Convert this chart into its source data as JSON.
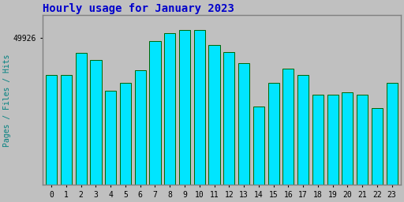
{
  "title": "Hourly usage for January 2023",
  "title_color": "#0000cc",
  "title_fontsize": 10,
  "ylabel": "Pages / Files / Hits",
  "ylabel_color": "#008080",
  "ylabel_fontsize": 7,
  "background_color": "#c0c0c0",
  "plot_bg_color": "#c0c0c0",
  "bar_face_color": "#00e5ff",
  "bar_edge_color": "#006400",
  "bar_edge_width": 0.7,
  "hours": [
    0,
    1,
    2,
    3,
    4,
    5,
    6,
    7,
    8,
    9,
    10,
    11,
    12,
    13,
    14,
    15,
    16,
    17,
    18,
    19,
    20,
    21,
    22,
    23
  ],
  "values": [
    49640,
    49640,
    49810,
    49760,
    49520,
    49580,
    49680,
    49900,
    49960,
    49990,
    49990,
    49870,
    49820,
    49730,
    49400,
    49580,
    49690,
    49640,
    49490,
    49490,
    49510,
    49490,
    49390,
    49580
  ],
  "ylim_min": 48800,
  "ylim_max": 50100,
  "ytick_label": "49926",
  "ytick_value": 49926,
  "font_family": "monospace",
  "border_color": "#808080",
  "tick_fontsize": 7
}
